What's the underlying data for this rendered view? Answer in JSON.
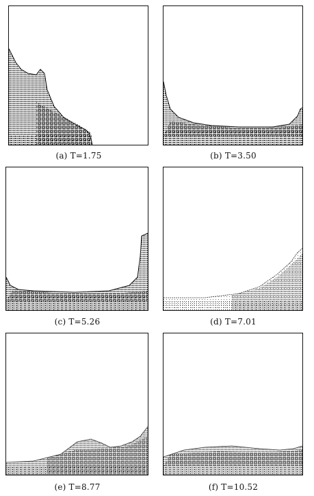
{
  "panels": [
    {
      "id": "a",
      "caption": "(a)  T=1.75"
    },
    {
      "id": "b",
      "caption": "(b)  T=3.50"
    },
    {
      "id": "c",
      "caption": "(c)  T=5.26"
    },
    {
      "id": "d",
      "caption": "(d)  T=7.01"
    },
    {
      "id": "e",
      "caption": "(e)  T=8.77"
    },
    {
      "id": "f",
      "caption": "(f)  T=10.52"
    }
  ]
}
